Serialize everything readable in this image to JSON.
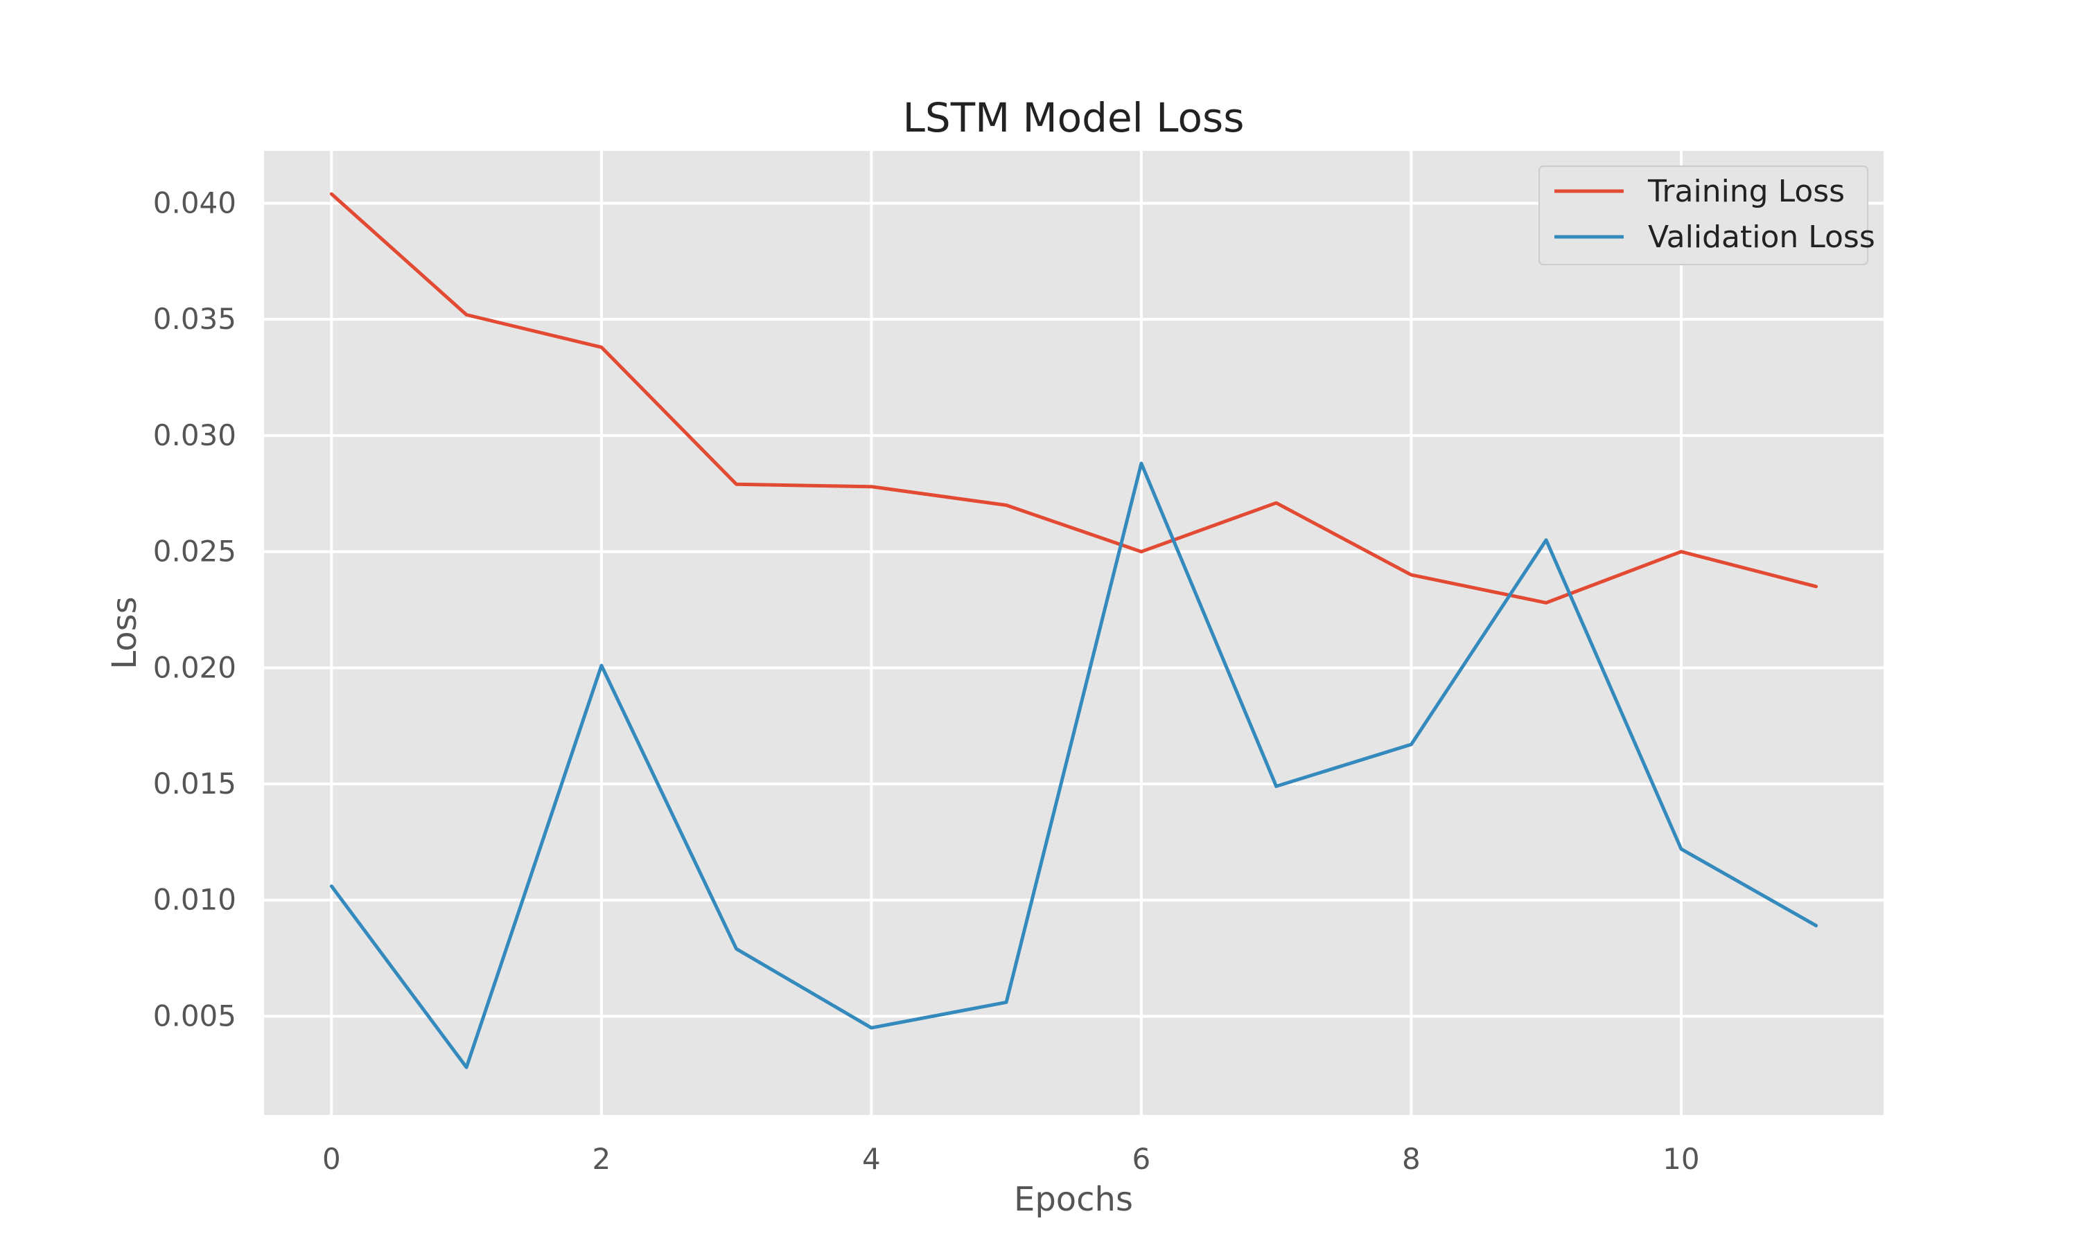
{
  "chart_data": {
    "type": "line",
    "title": "LSTM Model Loss",
    "xlabel": "Epochs",
    "ylabel": "Loss",
    "xlim": [
      -0.5,
      11.5
    ],
    "ylim": [
      0.00075,
      0.04225
    ],
    "xticks": [
      0,
      2,
      4,
      6,
      8,
      10
    ],
    "xtick_labels": [
      "0",
      "2",
      "4",
      "6",
      "8",
      "10"
    ],
    "yticks": [
      0.005,
      0.01,
      0.015,
      0.02,
      0.025,
      0.03,
      0.035,
      0.04
    ],
    "ytick_labels": [
      "0.005",
      "0.010",
      "0.015",
      "0.020",
      "0.025",
      "0.030",
      "0.035",
      "0.040"
    ],
    "grid": true,
    "legend_position": "upper right",
    "x": [
      0,
      1,
      2,
      3,
      4,
      5,
      6,
      7,
      8,
      9,
      10,
      11
    ],
    "series": [
      {
        "name": "Training Loss",
        "color": "#E24A33",
        "values": [
          0.0404,
          0.0352,
          0.0338,
          0.0279,
          0.0278,
          0.027,
          0.025,
          0.0271,
          0.024,
          0.0228,
          0.025,
          0.0235
        ]
      },
      {
        "name": "Validation Loss",
        "color": "#348ABD",
        "values": [
          0.0106,
          0.0028,
          0.0201,
          0.0079,
          0.0045,
          0.0056,
          0.0288,
          0.0149,
          0.0167,
          0.0255,
          0.0122,
          0.0089
        ]
      }
    ],
    "colors": {
      "plot_background": "#E5E5E5",
      "grid": "#FFFFFF",
      "page_background": "#FFFFFF"
    }
  }
}
